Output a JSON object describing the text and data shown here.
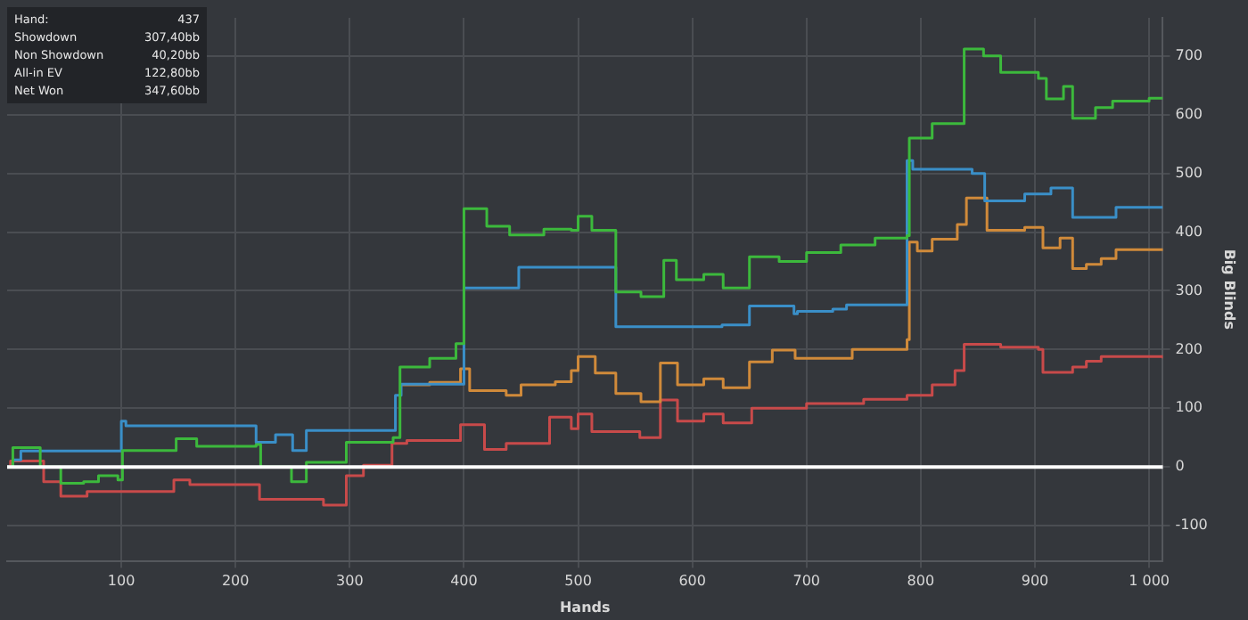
{
  "chart_data": {
    "type": "step",
    "xlabel": "Hands",
    "ylabel": "Big Blinds",
    "xlim": [
      0,
      1012
    ],
    "ylim": [
      -160,
      765
    ],
    "xticks": [
      100,
      200,
      300,
      400,
      500,
      600,
      700,
      800,
      900,
      {
        "value": 1000,
        "label": "1 000"
      }
    ],
    "yticks": [
      -100,
      0,
      100,
      200,
      300,
      400,
      500,
      600,
      700
    ],
    "grid": true,
    "marker": "none",
    "line_style": "solid",
    "ref_lines": [
      {
        "axis": "y",
        "value": 0,
        "color": "#ffffff"
      }
    ],
    "annotations": [
      "Hand: 437",
      "Showdown 307,40bb",
      "Non Showdown 40,20bb",
      "All-in EV 122,80bb",
      "Net Won 347,60bb"
    ],
    "series": [
      {
        "color": "#3cb93c",
        "x": [
          0,
          5,
          29,
          47,
          67,
          80,
          97,
          101,
          148,
          166,
          218,
          222,
          249,
          262,
          297,
          338,
          344,
          370,
          393,
          400,
          420,
          440,
          470,
          494,
          500,
          512,
          533,
          555,
          575,
          586,
          610,
          627,
          650,
          676,
          700,
          730,
          760,
          788,
          790,
          810,
          838,
          855,
          870,
          903,
          910,
          925,
          933,
          953,
          968,
          1000,
          1012
        ],
        "values": [
          0,
          33,
          0,
          -28,
          -25,
          -15,
          -22,
          28,
          48,
          35,
          38,
          0,
          -25,
          8,
          42,
          50,
          170,
          185,
          210,
          440,
          410,
          395,
          405,
          403,
          427,
          403,
          298,
          290,
          352,
          319,
          328,
          305,
          358,
          350,
          365,
          378,
          390,
          394,
          560,
          585,
          712,
          700,
          672,
          662,
          627,
          648,
          594,
          612,
          623,
          628,
          628
        ]
      },
      {
        "color": "#3a8fc8",
        "x": [
          0,
          5,
          12,
          100,
          104,
          218,
          235,
          250,
          262,
          337,
          340,
          345,
          392,
          400,
          448,
          533,
          626,
          650,
          689,
          692,
          723,
          735,
          788,
          793,
          845,
          856,
          891,
          914,
          933,
          971,
          1012
        ],
        "values": [
          0,
          12,
          27,
          78,
          70,
          42,
          55,
          28,
          62,
          62,
          122,
          141,
          141,
          305,
          340,
          239,
          242,
          274,
          261,
          265,
          269,
          276,
          522,
          507,
          500,
          453,
          465,
          475,
          425,
          442,
          442
        ]
      },
      {
        "color": "#d08a3a",
        "x": [
          344,
          370,
          397,
          405,
          437,
          450,
          480,
          494,
          500,
          515,
          533,
          555,
          572,
          587,
          610,
          627,
          650,
          670,
          690,
          740,
          788,
          790,
          797,
          810,
          832,
          840,
          858,
          891,
          907,
          922,
          933,
          945,
          958,
          971,
          1012
        ],
        "values": [
          140,
          144,
          167,
          130,
          122,
          140,
          145,
          164,
          188,
          160,
          125,
          111,
          177,
          140,
          150,
          135,
          179,
          199,
          185,
          200,
          217,
          383,
          368,
          388,
          413,
          458,
          403,
          408,
          373,
          390,
          338,
          345,
          355,
          370,
          372
        ]
      },
      {
        "color": "#c84a4a",
        "x": [
          0,
          3,
          32,
          47,
          70,
          146,
          160,
          221,
          277,
          297,
          312,
          337,
          350,
          397,
          418,
          437,
          475,
          494,
          500,
          512,
          554,
          572,
          587,
          610,
          627,
          652,
          700,
          750,
          788,
          810,
          830,
          838,
          870,
          903,
          907,
          933,
          945,
          958,
          1012
        ],
        "values": [
          0,
          10,
          -25,
          -50,
          -42,
          -22,
          -30,
          -55,
          -65,
          -15,
          3,
          40,
          45,
          72,
          30,
          40,
          85,
          65,
          90,
          60,
          50,
          114,
          78,
          90,
          75,
          100,
          108,
          115,
          122,
          140,
          164,
          209,
          204,
          200,
          161,
          170,
          180,
          188,
          185
        ]
      }
    ]
  }
}
